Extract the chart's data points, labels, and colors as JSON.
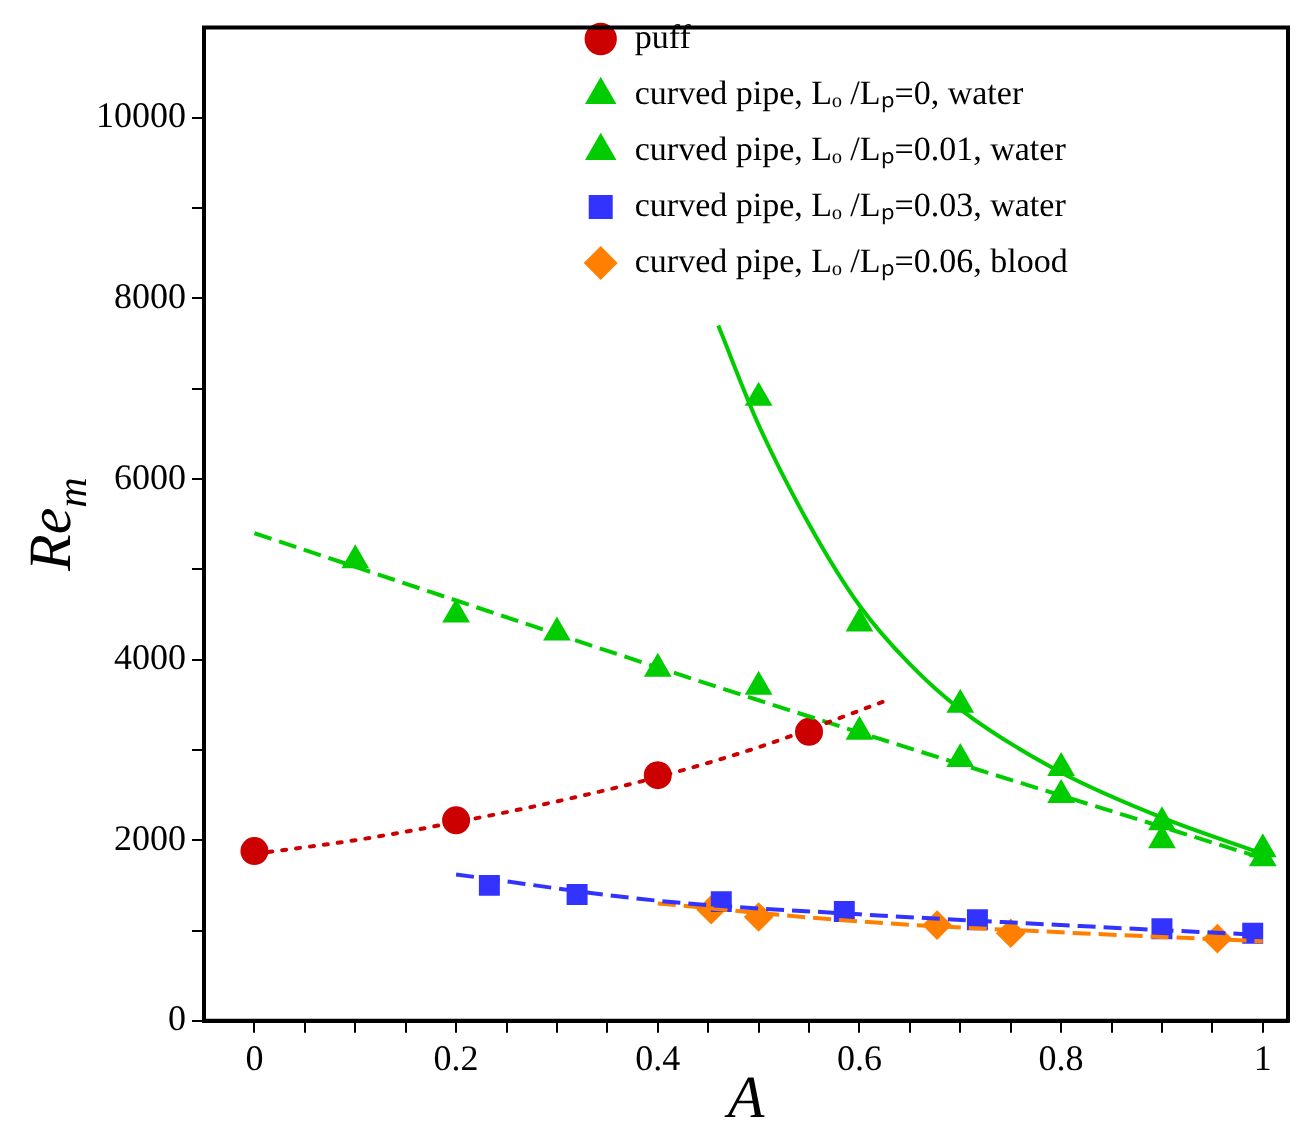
{
  "chart_data": {
    "type": "line",
    "xlabel": "A",
    "ylabel": "Re$_{m}$",
    "xlim": [
      -0.05,
      1.025
    ],
    "ylim": [
      0,
      11000
    ],
    "xticks": [
      0,
      {
        "value": 0.05,
        "label": null
      },
      0.2,
      {
        "value": 0.1,
        "label": null
      },
      {
        "value": 0.15,
        "label": null
      },
      {
        "value": 0.25,
        "label": null
      },
      {
        "value": 0.3,
        "label": null
      },
      {
        "value": 0.35,
        "label": null
      },
      0.4,
      {
        "value": 0.45,
        "label": null
      },
      {
        "value": 0.5,
        "label": null
      },
      {
        "value": 0.55,
        "label": null
      },
      0.6,
      {
        "value": 0.65,
        "label": null
      },
      {
        "value": 0.7,
        "label": null
      },
      {
        "value": 0.75,
        "label": null
      },
      0.8,
      {
        "value": 0.85,
        "label": null
      },
      {
        "value": 0.9,
        "label": null
      },
      {
        "value": 0.95,
        "label": null
      },
      1
    ],
    "yticks": [
      0,
      {
        "value": 1000,
        "label": null
      },
      2000,
      {
        "value": 3000,
        "label": null
      },
      4000,
      {
        "value": 5000,
        "label": null
      },
      6000,
      {
        "value": 7000,
        "label": null
      },
      8000,
      {
        "value": 9000,
        "label": null
      },
      10000
    ],
    "grid": false,
    "legend": "top",
    "series": [
      {
        "name": "puff",
        "type": "scatter",
        "color": "#cc0000",
        "marker": "circle",
        "line_style": "dotted",
        "x": [
          0,
          0.2,
          0.4,
          0.55
        ],
        "values": [
          1880,
          2220,
          2720,
          3200
        ]
      },
      {
        "name": "curved pipe, Lₒ /Lₚ=0, water",
        "type": "scatter",
        "color": "#00cc00",
        "marker": "triangle",
        "line_style": "solid",
        "x": [
          0.5,
          0.6,
          0.7,
          0.8,
          0.9,
          1
        ],
        "values": [
          6900,
          4400,
          3500,
          2800,
          2200,
          1900
        ]
      },
      {
        "name": "curved pipe, Lₒ /Lₚ=0.01, water",
        "type": "scatter",
        "color": "#00cc00",
        "marker": "triangle",
        "line_style": "dashed",
        "x": [
          0.1,
          0.2,
          0.3,
          0.4,
          0.5,
          0.6,
          0.7,
          0.8,
          0.9,
          1
        ],
        "values": [
          5100,
          4500,
          4300,
          3900,
          3700,
          3200,
          2900,
          2500,
          2000,
          1800
        ]
      },
      {
        "name": "curved pipe, Lₒ /Lₚ=0.03, water",
        "type": "scatter",
        "color": "#3333ff",
        "marker": "square",
        "line_style": "dashed",
        "x": [
          0.233,
          0.32,
          0.463,
          0.585,
          0.717,
          0.9,
          0.99
        ],
        "values": [
          1500,
          1400,
          1320,
          1210,
          1120,
          1020,
          970
        ]
      },
      {
        "name": "curved pipe, Lₒ /Lₚ=0.06, blood",
        "type": "scatter",
        "color": "#ff8000",
        "marker": "diamond",
        "line_style": "dashed",
        "x": [
          0.453,
          0.5,
          0.677,
          0.75,
          0.955
        ],
        "values": [
          1230,
          1150,
          1060,
          970,
          910
        ]
      },
      {
        "type": "line",
        "color": "#cc0000",
        "marker": "none",
        "line_style": "dotted",
        "x": [
          0,
          0.1,
          0.2,
          0.3,
          0.4,
          0.5,
          0.63
        ],
        "values": [
          1850,
          2000,
          2200,
          2430,
          2700,
          3030,
          3560
        ]
      },
      {
        "type": "line",
        "color": "#00cc00",
        "marker": "none",
        "line_style": "solid",
        "x": [
          0.46,
          0.5,
          0.55,
          0.6,
          0.65,
          0.7,
          0.8,
          0.9,
          1
        ],
        "values": [
          7700,
          6600,
          5500,
          4600,
          3950,
          3450,
          2750,
          2250,
          1850
        ]
      },
      {
        "type": "line",
        "color": "#00cc00",
        "marker": "none",
        "line_style": "dashed",
        "x": [
          0,
          0.5,
          1
        ],
        "values": [
          5400,
          3550,
          1800
        ]
      },
      {
        "type": "line",
        "color": "#3333ff",
        "marker": "none",
        "line_style": "dashed",
        "x": [
          0.2,
          0.4,
          0.6,
          0.8,
          1
        ],
        "values": [
          1620,
          1330,
          1180,
          1060,
          950
        ]
      },
      {
        "type": "line",
        "color": "#ff8000",
        "marker": "none",
        "line_style": "dashed",
        "x": [
          0.4,
          0.6,
          0.8,
          1
        ],
        "values": [
          1300,
          1100,
          980,
          880
        ]
      }
    ]
  }
}
